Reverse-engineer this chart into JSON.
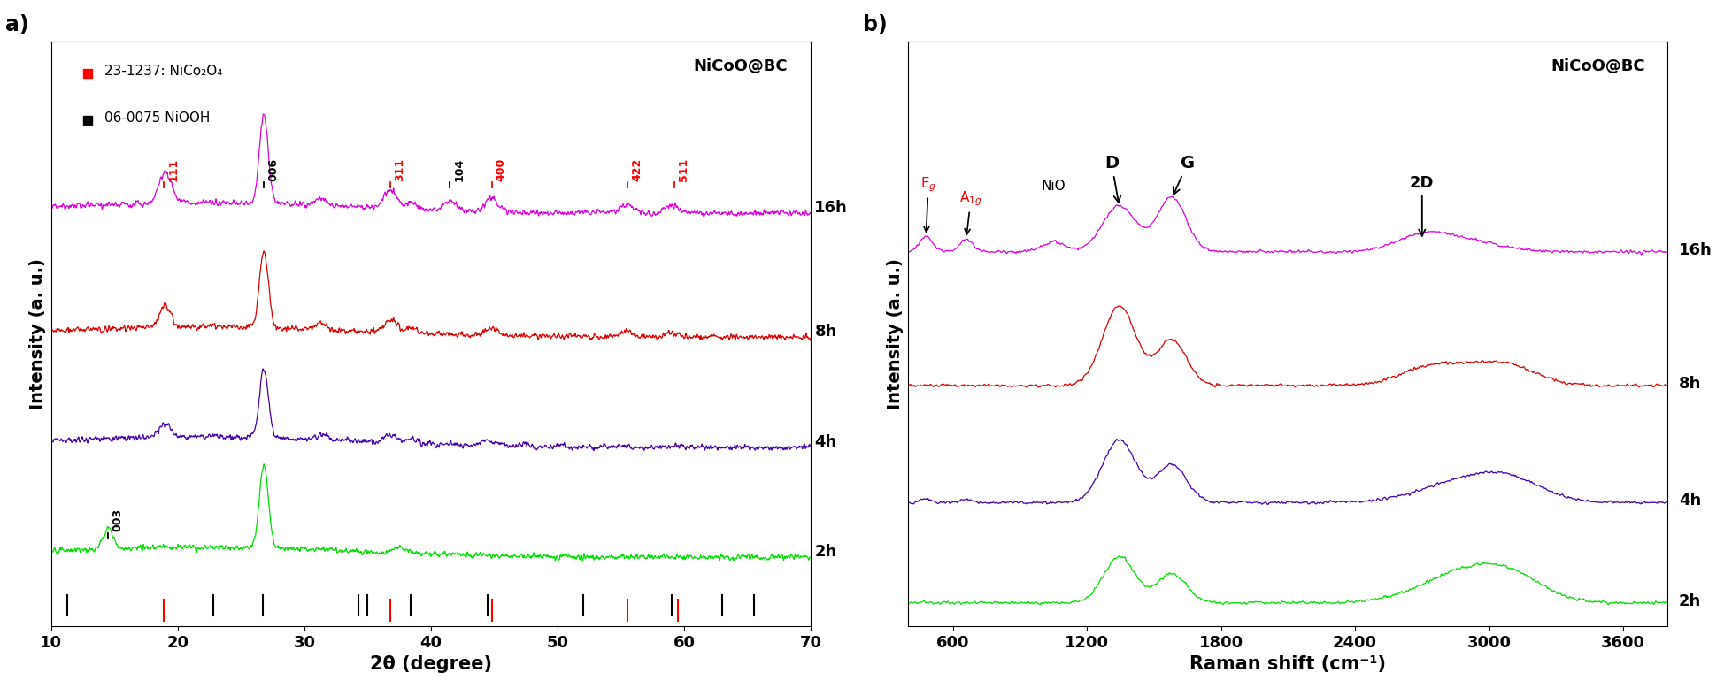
{
  "panel_a": {
    "title": "NiCoO@BC",
    "xlabel": "2θ (degree)",
    "ylabel": "Intensity (a. u.)",
    "xmin": 10,
    "xmax": 70,
    "colors": [
      "#00dd00",
      "#4400aa",
      "#dd0000",
      "#dd00dd"
    ],
    "labels": [
      "2h",
      "4h",
      "8h",
      "16h"
    ],
    "offsets": [
      0.0,
      1.6,
      3.2,
      5.0
    ],
    "legend_red_label": "23-1237: NiCo₂O₄",
    "legend_black_label": "06-0075 NiOOH",
    "ref_lines_black": [
      11.3,
      22.8,
      26.7,
      34.3,
      35.0,
      38.4,
      44.5,
      52.0,
      59.0,
      63.0,
      65.5
    ],
    "ref_lines_red": [
      18.9,
      36.8,
      44.8,
      55.5,
      59.5
    ]
  },
  "panel_b": {
    "title": "NiCoO@BC",
    "xlabel": "Raman shift (cm⁻¹)",
    "ylabel": "Intensity (a. u.)",
    "xmin": 400,
    "xmax": 3800,
    "colors": [
      "#00dd00",
      "#4400aa",
      "#dd0000",
      "#dd00dd"
    ],
    "labels": [
      "2h",
      "4h",
      "8h",
      "16h"
    ],
    "offsets": [
      0.0,
      1.2,
      2.6,
      4.2
    ]
  }
}
